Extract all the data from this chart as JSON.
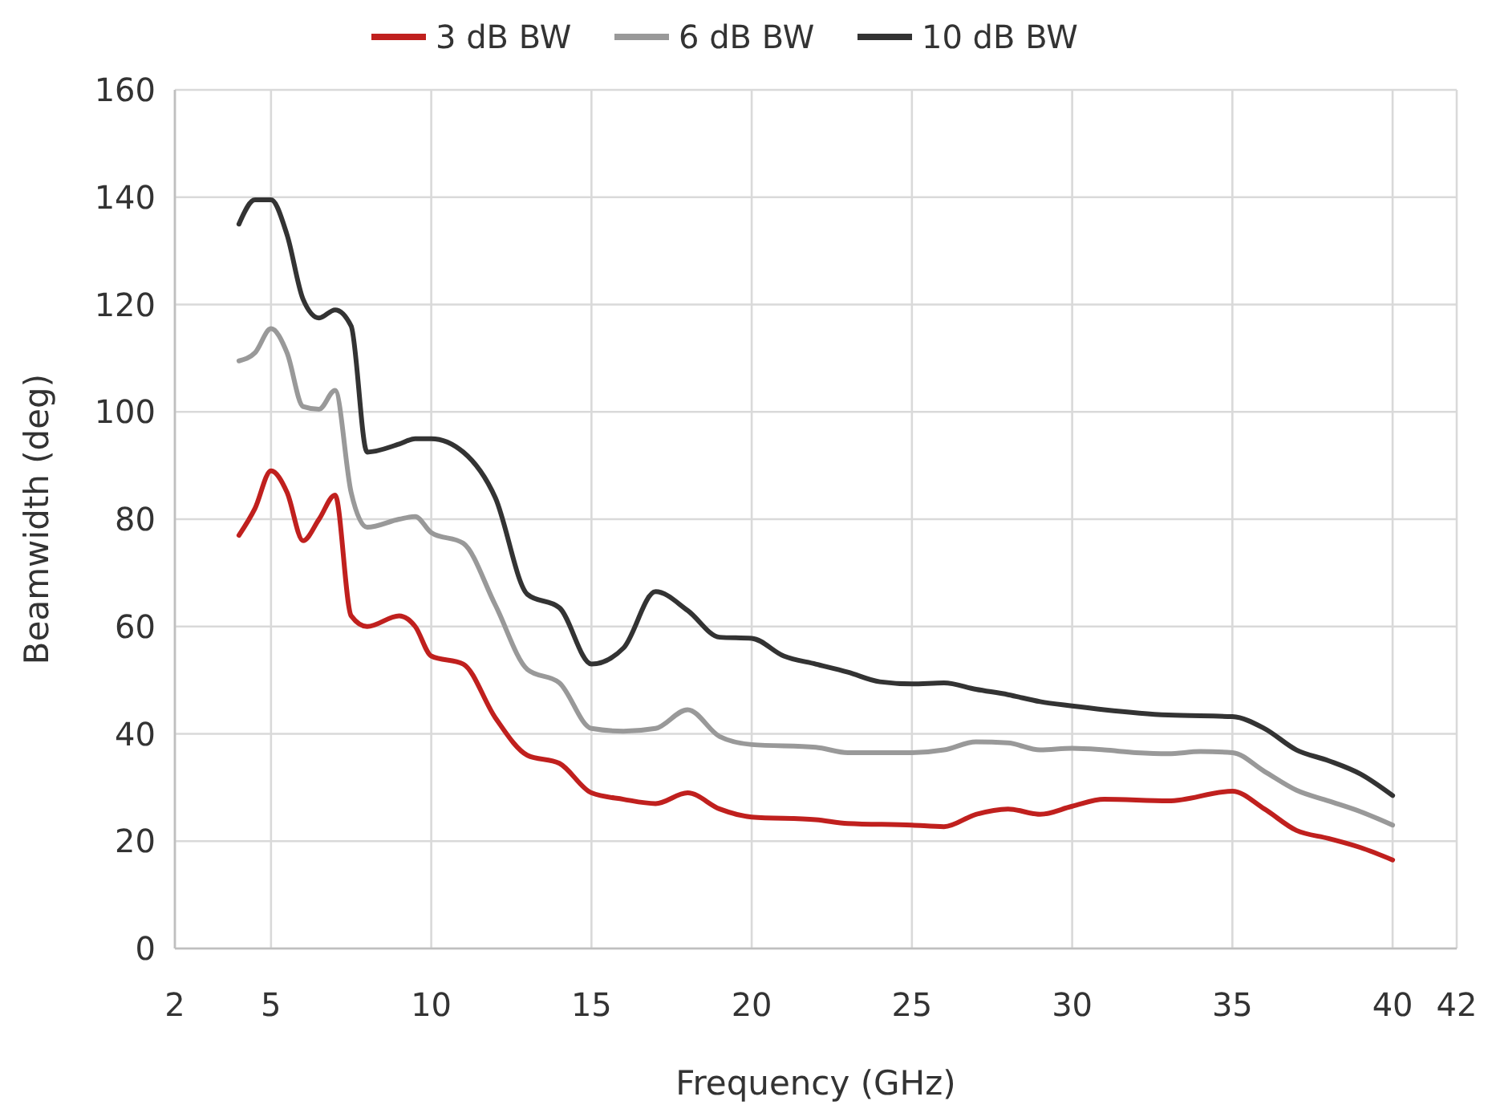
{
  "chart_data": {
    "type": "line",
    "xlabel": "Frequency (GHz)",
    "ylabel": "Beamwidth (deg)",
    "xlim": [
      2,
      42
    ],
    "xticks": [
      2,
      5,
      10,
      15,
      20,
      25,
      30,
      35,
      40,
      42
    ],
    "ylim": [
      0,
      160
    ],
    "yticks": [
      0,
      20,
      40,
      60,
      80,
      100,
      120,
      140,
      160
    ],
    "grid": true,
    "legend": "top",
    "marker": "none",
    "line_style": "solid",
    "series": [
      {
        "name": "3 dB BW",
        "color": "#c0201e",
        "x": [
          4,
          4.5,
          5,
          5.5,
          6,
          6.5,
          7,
          7.5,
          8,
          9,
          9.5,
          10,
          11,
          12,
          13,
          14,
          15,
          16,
          17,
          18,
          19,
          20,
          22,
          23,
          25,
          26,
          27,
          28,
          29,
          30,
          31,
          33,
          35,
          36,
          37,
          38,
          39,
          40
        ],
        "values": [
          77,
          82,
          89,
          85,
          76,
          80,
          84.5,
          62,
          60,
          62,
          60,
          54.5,
          53,
          43,
          36,
          34.5,
          29,
          27.8,
          27,
          29,
          26,
          24.5,
          24,
          23.3,
          23,
          22.7,
          25,
          26,
          25,
          26.5,
          27.8,
          27.5,
          29.3,
          26,
          22,
          20.5,
          18.8,
          16.5
        ]
      },
      {
        "name": "6 dB BW",
        "color": "#999999",
        "x": [
          4,
          4.5,
          5,
          5.5,
          6,
          6.5,
          7,
          7.5,
          8,
          9,
          9.5,
          10,
          11,
          12,
          13,
          14,
          15,
          16,
          17,
          18,
          19,
          20,
          22,
          23,
          25,
          26,
          27,
          28,
          29,
          30,
          31,
          32,
          33,
          34,
          35,
          36,
          37,
          38,
          39,
          40
        ],
        "values": [
          109.5,
          111,
          115.5,
          111,
          101,
          100.5,
          104,
          85,
          78.5,
          80,
          80.5,
          77.5,
          75.5,
          64,
          52,
          49.5,
          41,
          40.5,
          41,
          44.5,
          39.5,
          38,
          37.5,
          36.5,
          36.5,
          37,
          38.5,
          38.3,
          37,
          37.3,
          37,
          36.5,
          36.3,
          36.7,
          36.5,
          33,
          29.5,
          27.5,
          25.5,
          23
        ]
      },
      {
        "name": "10 dB BW",
        "color": "#333333",
        "x": [
          4,
          4.5,
          5,
          5.5,
          6,
          6.5,
          7,
          7.5,
          8,
          9,
          9.5,
          10,
          11,
          12,
          13,
          14,
          15,
          16,
          17,
          18,
          19,
          20,
          21,
          22,
          23,
          24,
          25,
          26,
          27,
          28,
          29,
          30,
          31,
          33,
          35,
          36,
          37,
          38,
          39,
          40
        ],
        "values": [
          135,
          139.5,
          139.5,
          133,
          121,
          117.5,
          119,
          116,
          92.5,
          94,
          95,
          95,
          92.5,
          84,
          66,
          63.5,
          53,
          56,
          66.5,
          63,
          58,
          57.8,
          54.5,
          53,
          51.5,
          49.7,
          49.3,
          49.5,
          48.3,
          47.3,
          46,
          45.2,
          44.5,
          43.5,
          43.2,
          41,
          37,
          35,
          32.5,
          28.5
        ]
      }
    ]
  }
}
